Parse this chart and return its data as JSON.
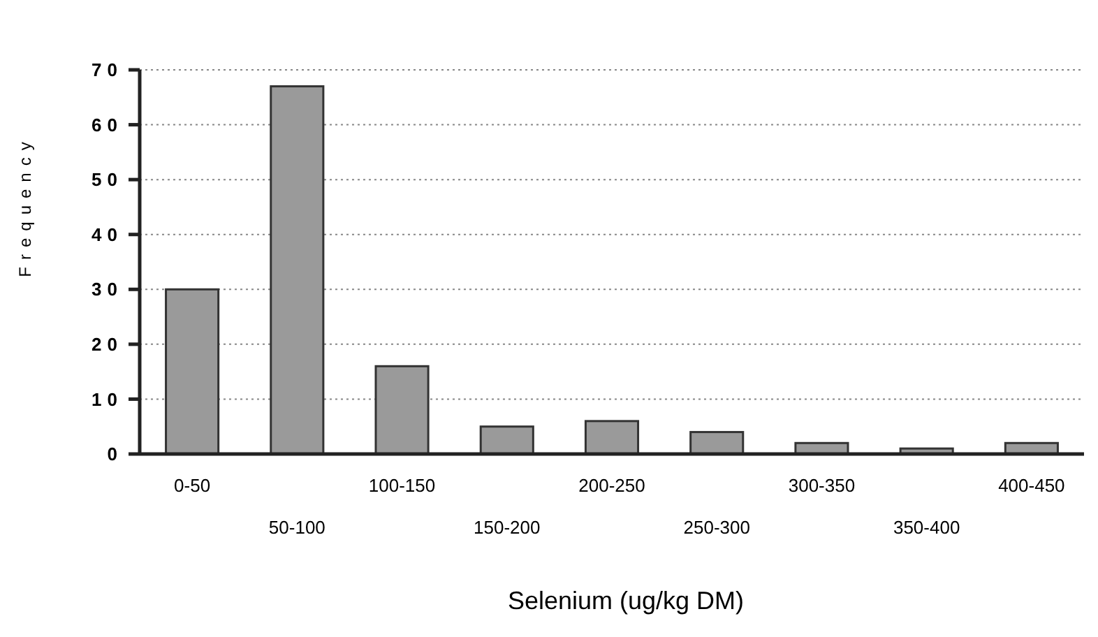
{
  "chart_data": {
    "type": "bar",
    "xlabel": "Selenium (ug/kg DM)",
    "ylabel": "Frequency",
    "categories": [
      "0-50",
      "50-100",
      "100-150",
      "150-200",
      "200-250",
      "250-300",
      "300-350",
      "350-400",
      "400-450"
    ],
    "values": [
      30,
      67,
      16,
      5,
      6,
      4,
      2,
      1,
      2
    ],
    "color": "#9a9a9a",
    "ylim": [
      0,
      70
    ],
    "yticks": [
      0,
      10,
      20,
      30,
      40,
      50,
      60,
      70
    ],
    "grid": "y"
  }
}
